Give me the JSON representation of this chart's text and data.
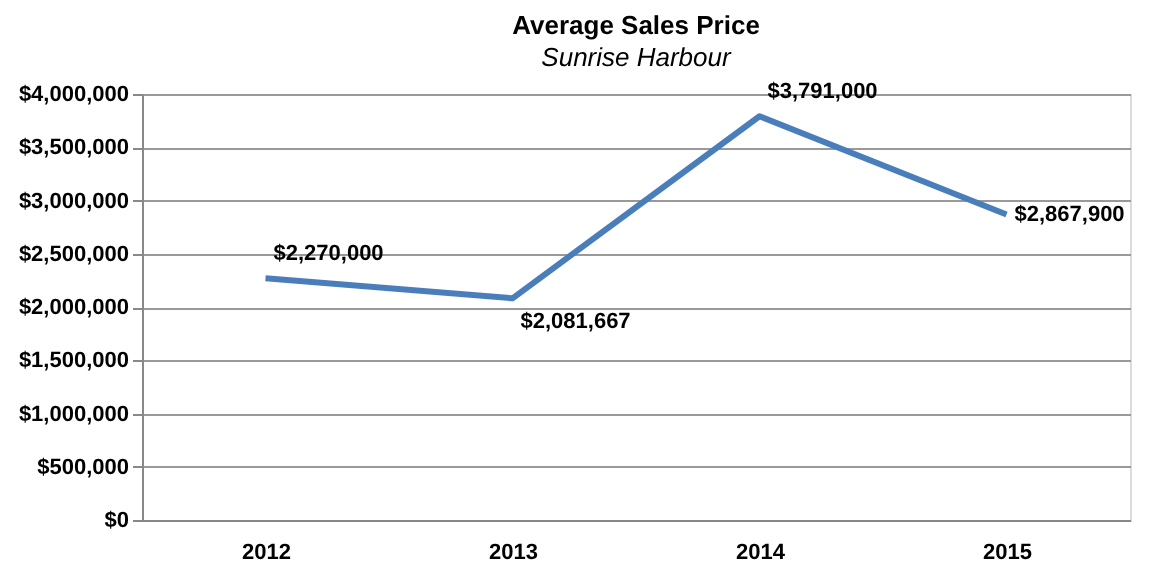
{
  "chart_data": {
    "type": "line",
    "title": "Average Sales Price",
    "subtitle": "Sunrise Harbour",
    "categories": [
      "2012",
      "2013",
      "2014",
      "2015"
    ],
    "series": [
      {
        "color": "#4a7ebb",
        "values": [
          2270000,
          2081667,
          3791000,
          2867900
        ],
        "value_labels": [
          "$2,270,000",
          "$2,081,667",
          "$3,791,000",
          "$2,867,900"
        ]
      }
    ],
    "ylim": [
      0,
      4000000
    ],
    "yticks": [
      {
        "value": 0,
        "label": "$0"
      },
      {
        "value": 500000,
        "label": "$500,000"
      },
      {
        "value": 1000000,
        "label": "$1,000,000"
      },
      {
        "value": 1500000,
        "label": "$1,500,000"
      },
      {
        "value": 2000000,
        "label": "$2,000,000"
      },
      {
        "value": 2500000,
        "label": "$2,500,000"
      },
      {
        "value": 3000000,
        "label": "$3,000,000"
      },
      {
        "value": 3500000,
        "label": "$3,500,000"
      },
      {
        "value": 4000000,
        "label": "$4,000,000"
      }
    ],
    "grid": "y",
    "marker": "none",
    "line_style": "solid"
  }
}
